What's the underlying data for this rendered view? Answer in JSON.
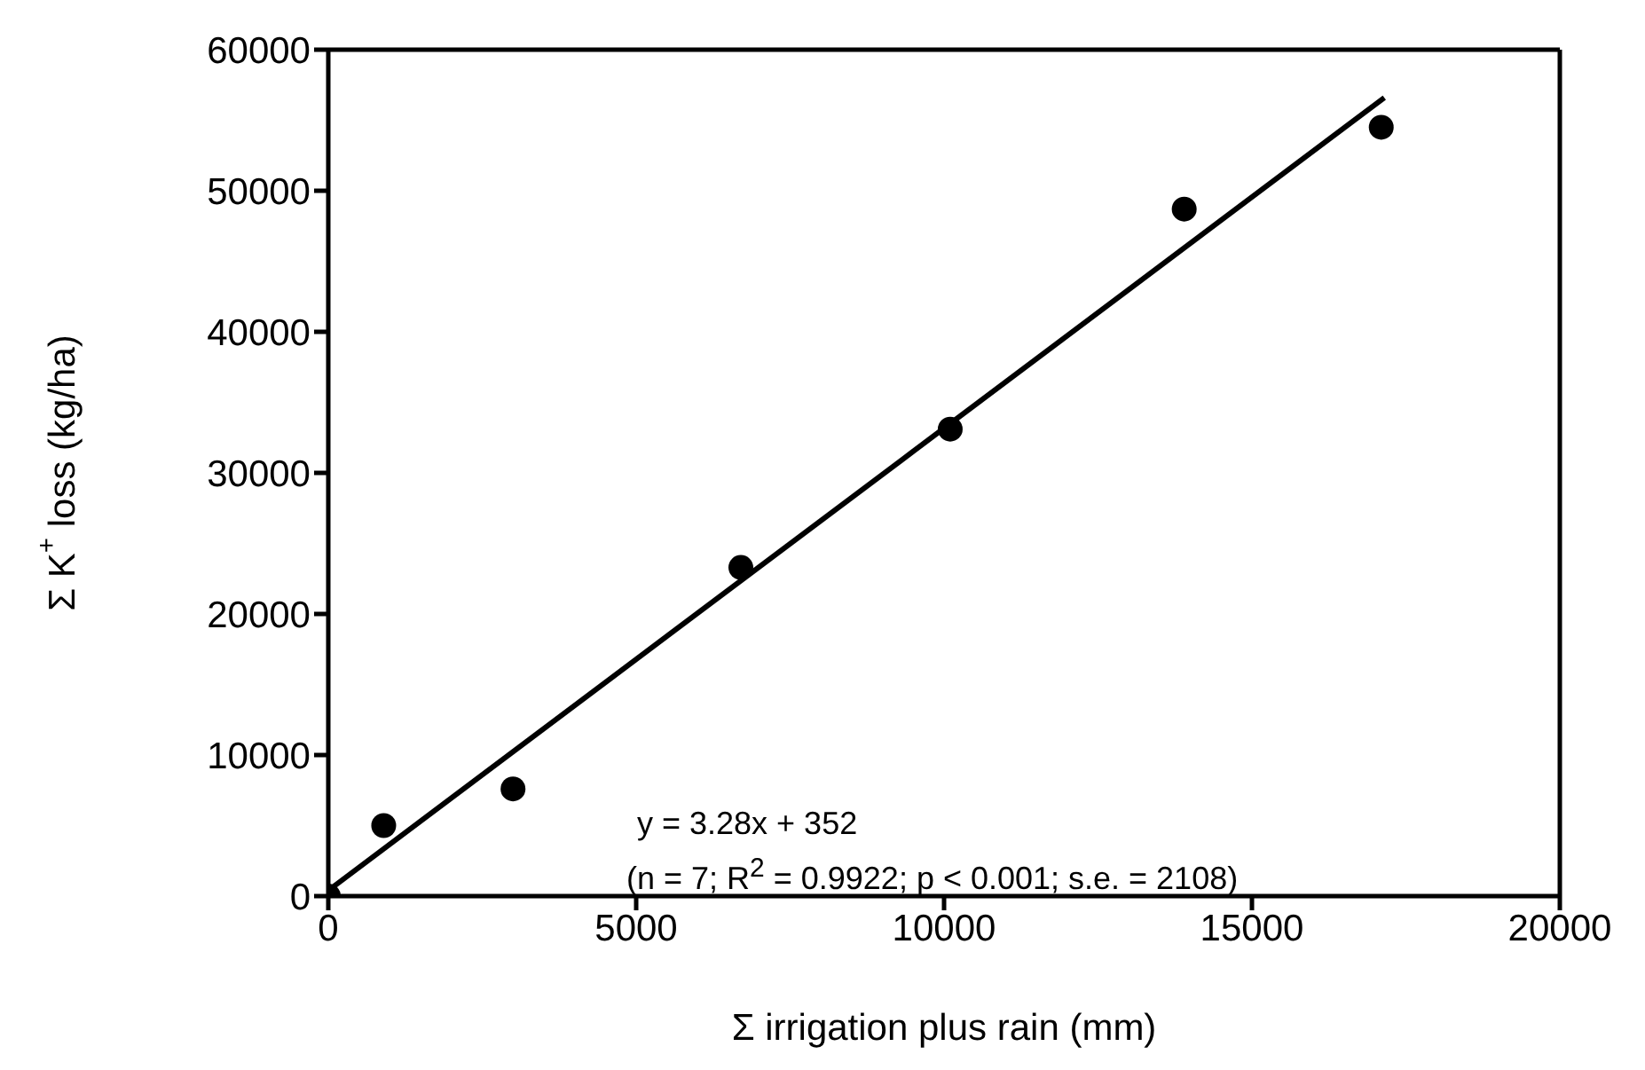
{
  "chart_data": {
    "type": "scatter",
    "xlabel": "Σ irrigation plus rain (mm)",
    "ylabel": "Σ K$^{+}$ loss (kg/ha)",
    "xlim": [
      0,
      20000
    ],
    "xticks": [
      0,
      5000,
      10000,
      15000,
      20000
    ],
    "ylim": [
      0,
      60000
    ],
    "yticks": [
      0,
      10000,
      20000,
      30000,
      40000,
      50000,
      60000
    ],
    "marker": "circle",
    "series": [
      {
        "color": "#000000",
        "x": [
          0,
          900,
          3000,
          6700,
          10100,
          13900,
          17100
        ],
        "values": [
          0,
          5000,
          7600,
          23300,
          33100,
          48700,
          54500
        ]
      },
      {
        "type": "line",
        "color": "#000000",
        "marker": "none",
        "x": [
          0,
          17150
        ],
        "values": [
          400,
          56600
        ]
      }
    ],
    "annotations": [
      "y = 3.28x + 352",
      "(n = 7; R$^{2}$ = 0.9922; p < 0.001; s.e. = 2108)"
    ]
  }
}
